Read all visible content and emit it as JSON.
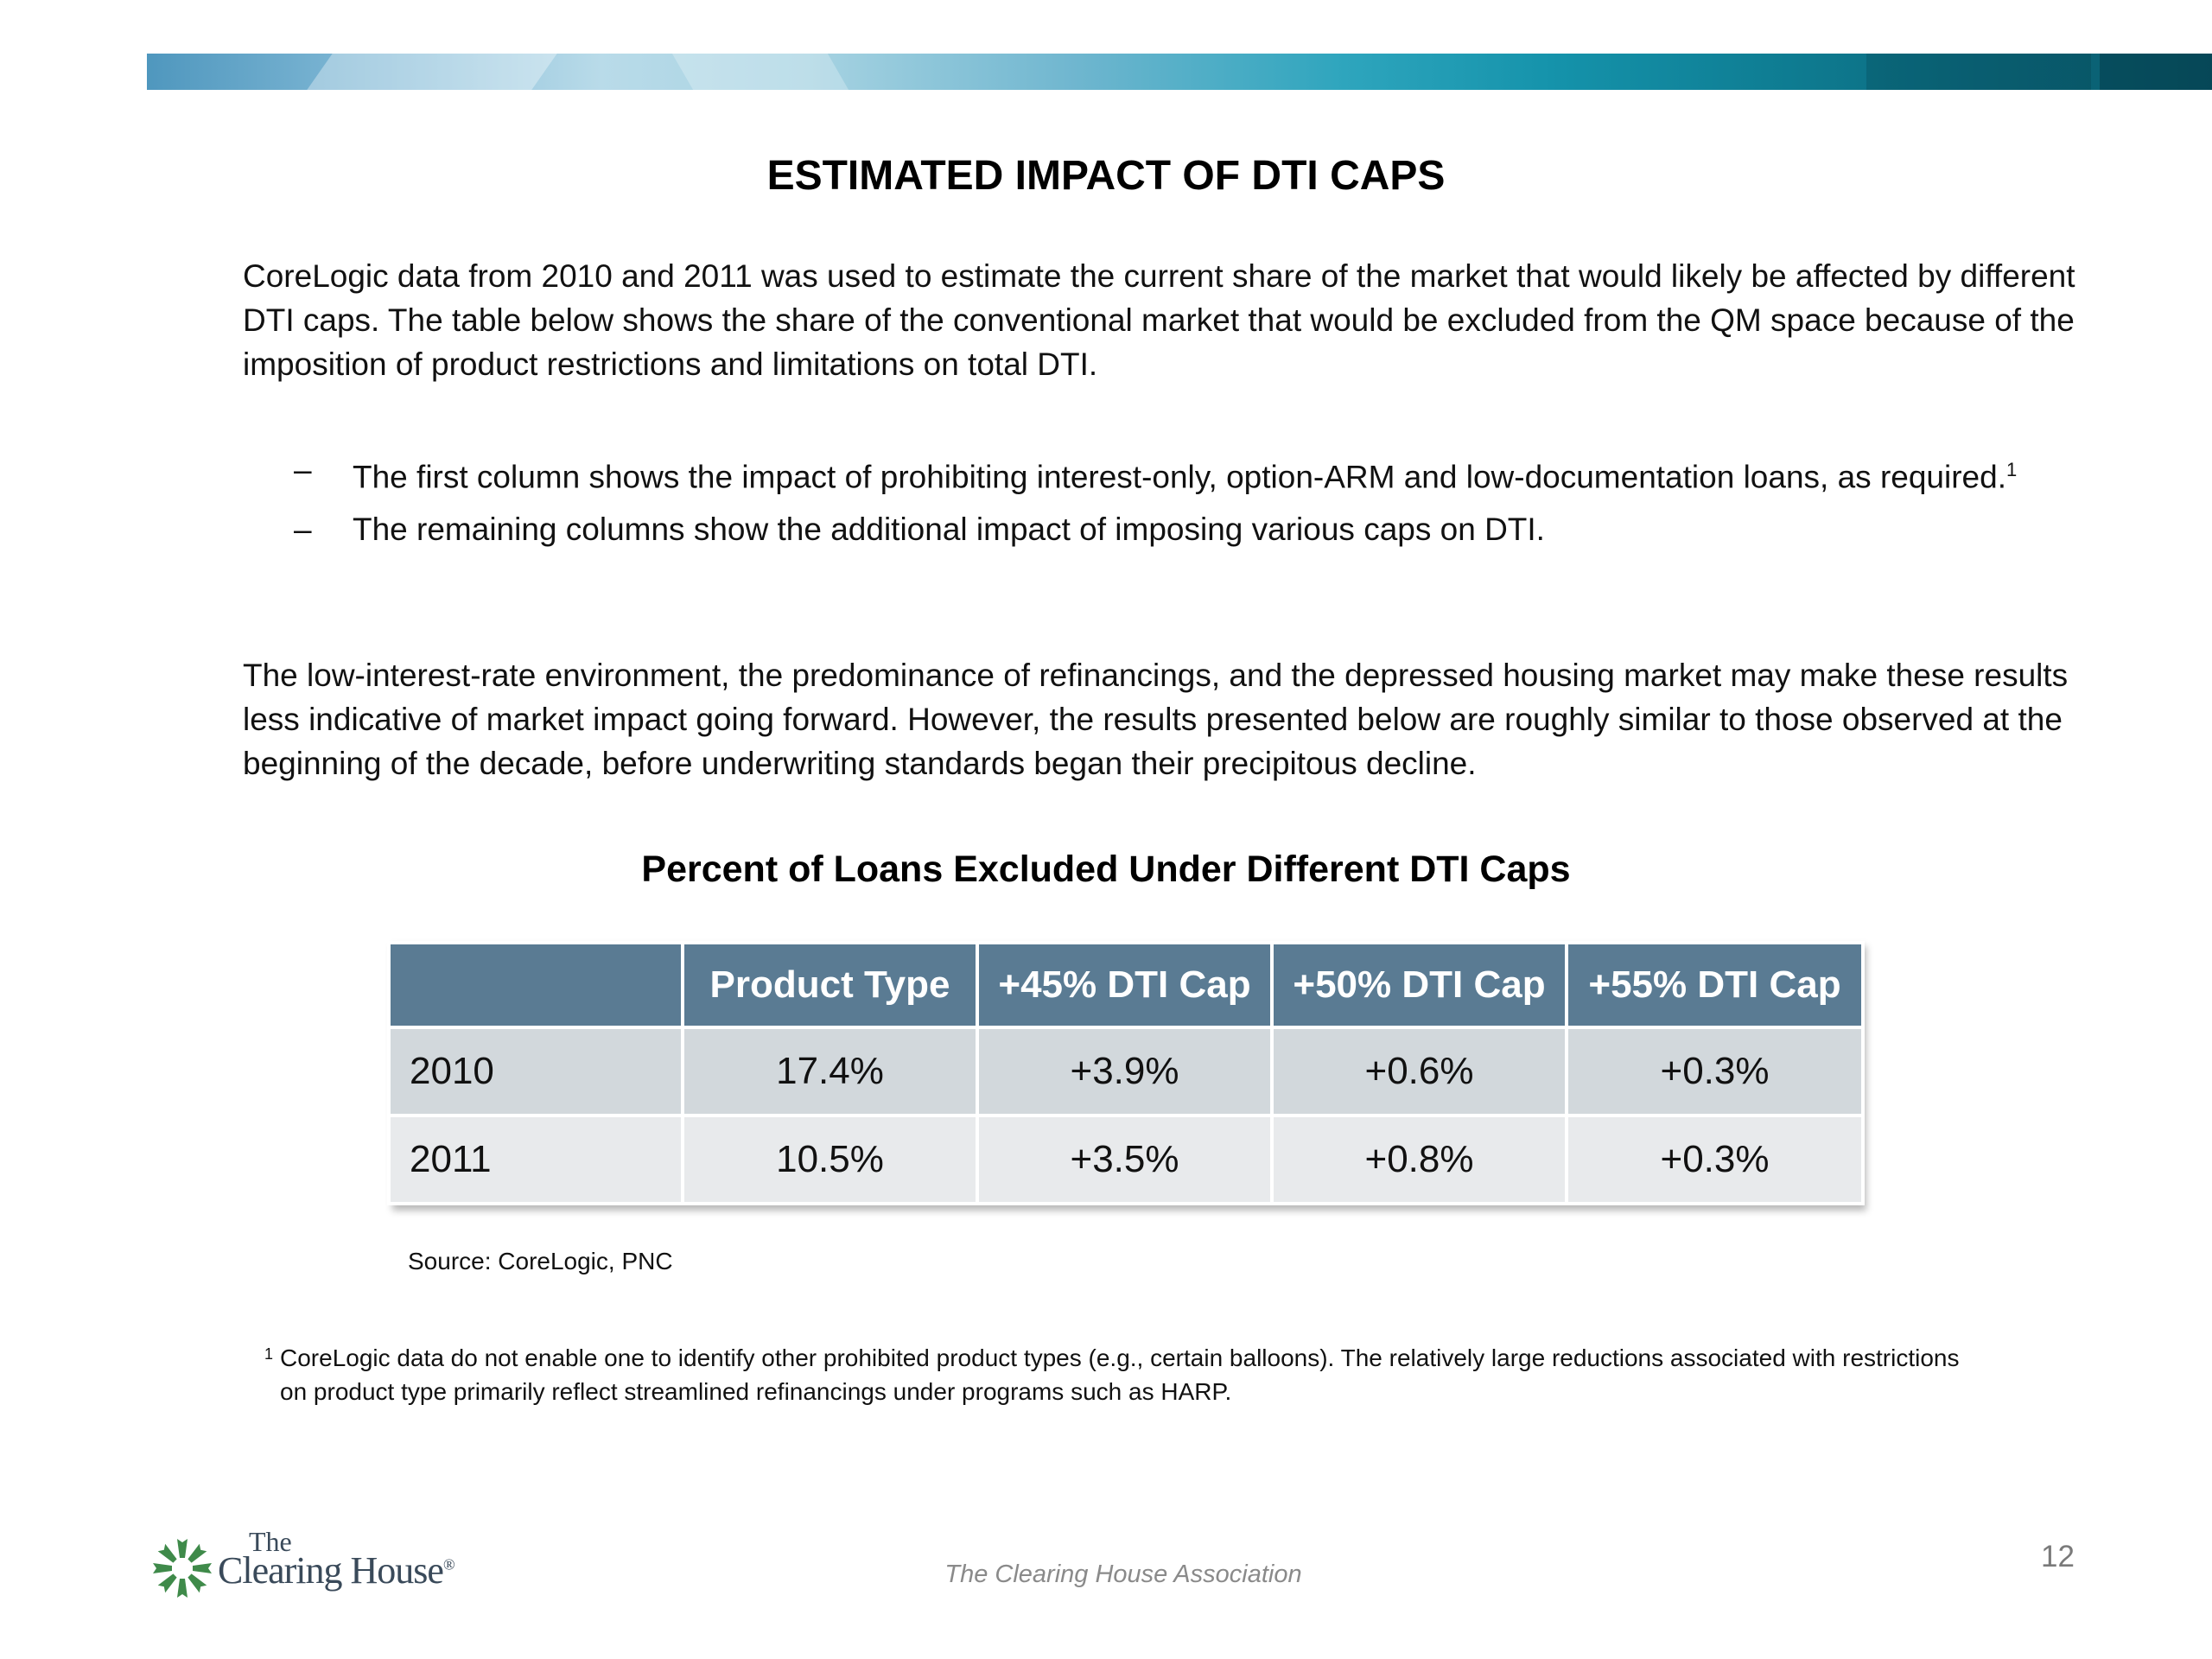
{
  "slide": {
    "title": "ESTIMATED IMPACT OF DTI CAPS",
    "para1": "CoreLogic data from 2010 and 2011 was used to estimate the current share of the market that would likely be affected by different DTI caps.  The table below shows the share of the conventional market that would be excluded from the QM space because of the imposition of product restrictions and limitations on total DTI.",
    "bullets": [
      {
        "dash": "–",
        "text": "The first column shows the impact of prohibiting interest-only, option-ARM and low-documentation loans, as required.",
        "sup": "1"
      },
      {
        "dash": "–",
        "text": "The remaining columns show the additional impact of imposing various caps on DTI.",
        "sup": ""
      }
    ],
    "para2": "The low-interest-rate environment, the predominance of refinancings, and the depressed housing market may make these results less indicative of market impact going forward. However, the results presented below are roughly similar to those observed at the beginning of the decade, before underwriting standards began their precipitous decline.",
    "table_title": "Percent of Loans Excluded Under Different DTI Caps",
    "table": {
      "headers": [
        "",
        "Product Type",
        "+45% DTI Cap",
        "+50% DTI Cap",
        "+55% DTI Cap"
      ],
      "rows": [
        [
          "2010",
          "17.4%",
          "+3.9%",
          "+0.6%",
          "+0.3%"
        ],
        [
          "2011",
          "10.5%",
          "+3.5%",
          "+0.8%",
          "+0.3%"
        ]
      ]
    },
    "source": "Source:  CoreLogic, PNC",
    "footnote_mark": "1",
    "footnote": "CoreLogic data do not enable one to identify other prohibited product types (e.g., certain balloons).  The relatively large reductions associated with restrictions on product type primarily reflect  streamlined refinancings under programs such as HARP."
  },
  "footer": {
    "logo_the": "The",
    "logo_name": "Clearing House",
    "logo_mark": "®",
    "association": "The Clearing House Association",
    "page_number": "12"
  },
  "colors": {
    "table_header": "#5a7b93",
    "row_odd": "#d2d8dc",
    "row_even": "#e8eaec",
    "logo_green": "#3f8a4a"
  }
}
